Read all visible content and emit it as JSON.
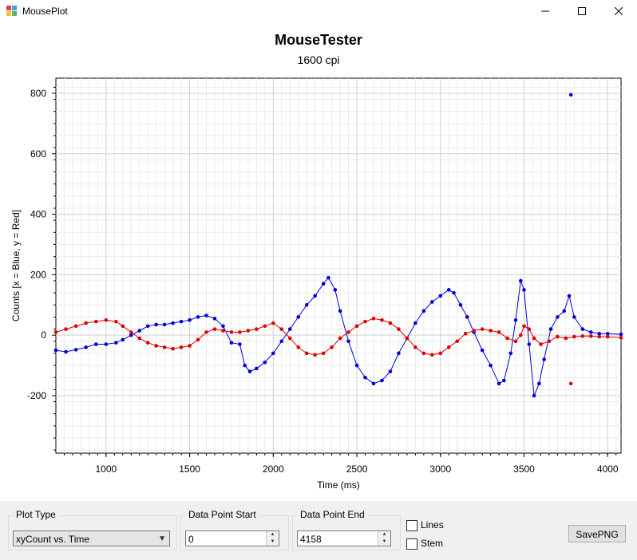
{
  "window": {
    "title": "MousePlot",
    "icons": [
      "app-icon",
      "minimize-icon",
      "maximize-icon",
      "close-icon"
    ]
  },
  "chart_data": {
    "type": "scatter",
    "title": "MouseTester",
    "subtitle": "1600 cpi",
    "xlabel": "Time (ms)",
    "ylabel": "Counts [x = Blue, y = Red]",
    "xlim": [
      700,
      4080
    ],
    "ylim": [
      -390,
      850
    ],
    "xticks": [
      1000,
      1500,
      2000,
      2500,
      3000,
      3500,
      4000
    ],
    "yticks": [
      -200,
      0,
      200,
      400,
      600,
      800
    ],
    "tick_labels_x": [
      "1000",
      "1500",
      "2000",
      "2500",
      "3000",
      "3500",
      "4000"
    ],
    "tick_labels_y": [
      "-200",
      "0",
      "200",
      "400",
      "600",
      "800"
    ],
    "grid": true,
    "series": [
      {
        "color": "#0000e0",
        "x": [
          700,
          760,
          820,
          880,
          940,
          1000,
          1060,
          1100,
          1150,
          1200,
          1250,
          1300,
          1350,
          1400,
          1450,
          1500,
          1550,
          1600,
          1650,
          1700,
          1750,
          1800,
          1830,
          1860,
          1900,
          1950,
          2000,
          2050,
          2100,
          2150,
          2200,
          2250,
          2300,
          2330,
          2370,
          2400,
          2450,
          2500,
          2550,
          2600,
          2650,
          2700,
          2750,
          2800,
          2850,
          2900,
          2950,
          3000,
          3050,
          3080,
          3120,
          3160,
          3200,
          3250,
          3300,
          3350,
          3380,
          3420,
          3450,
          3480,
          3500,
          3530,
          3560,
          3590,
          3620,
          3660,
          3700,
          3740,
          3770,
          3800,
          3850,
          3900,
          3950,
          4000,
          4080
        ],
        "y": [
          -50,
          -55,
          -48,
          -40,
          -30,
          -30,
          -25,
          -15,
          0,
          15,
          30,
          35,
          35,
          40,
          45,
          50,
          60,
          65,
          55,
          30,
          -25,
          -30,
          -100,
          -120,
          -110,
          -90,
          -60,
          -20,
          20,
          60,
          100,
          130,
          170,
          190,
          150,
          80,
          -20,
          -100,
          -140,
          -160,
          -150,
          -120,
          -60,
          -10,
          40,
          80,
          110,
          130,
          150,
          140,
          100,
          60,
          10,
          -50,
          -100,
          -160,
          -150,
          -60,
          50,
          180,
          150,
          -30,
          -200,
          -160,
          -80,
          20,
          60,
          80,
          130,
          60,
          20,
          10,
          5,
          5,
          3
        ]
      },
      {
        "color": "#e00000",
        "x": [
          700,
          760,
          820,
          880,
          940,
          1000,
          1060,
          1100,
          1150,
          1200,
          1250,
          1300,
          1350,
          1400,
          1450,
          1500,
          1550,
          1600,
          1650,
          1700,
          1750,
          1800,
          1850,
          1900,
          1950,
          2000,
          2050,
          2100,
          2150,
          2200,
          2250,
          2300,
          2350,
          2400,
          2450,
          2500,
          2550,
          2600,
          2650,
          2700,
          2750,
          2800,
          2850,
          2900,
          2950,
          3000,
          3050,
          3100,
          3150,
          3200,
          3250,
          3300,
          3350,
          3400,
          3450,
          3480,
          3500,
          3530,
          3560,
          3600,
          3650,
          3700,
          3750,
          3800,
          3850,
          3900,
          3950,
          4000,
          4080
        ],
        "y": [
          10,
          20,
          30,
          40,
          45,
          50,
          45,
          30,
          10,
          -10,
          -25,
          -35,
          -40,
          -45,
          -40,
          -35,
          -15,
          10,
          20,
          15,
          10,
          10,
          15,
          20,
          30,
          40,
          20,
          -10,
          -40,
          -60,
          -65,
          -60,
          -40,
          -10,
          10,
          30,
          45,
          55,
          50,
          40,
          20,
          -10,
          -40,
          -60,
          -65,
          -60,
          -40,
          -20,
          5,
          15,
          20,
          15,
          10,
          -10,
          -20,
          0,
          30,
          20,
          -10,
          -30,
          -20,
          -5,
          -10,
          -5,
          -3,
          -3,
          -5,
          -5,
          -8
        ]
      }
    ],
    "annotations": [
      {
        "x": 3780,
        "y": 795
      },
      {
        "x": 3780,
        "y": -160
      }
    ]
  },
  "controls": {
    "plot_type": {
      "label": "Plot Type",
      "value": "xyCount vs. Time"
    },
    "start": {
      "label": "Data Point Start",
      "value": "0"
    },
    "end": {
      "label": "Data Point End",
      "value": "4158"
    },
    "lines": {
      "label": "Lines",
      "checked": false
    },
    "stem": {
      "label": "Stem",
      "checked": false
    },
    "save": {
      "label": "SavePNG"
    }
  }
}
